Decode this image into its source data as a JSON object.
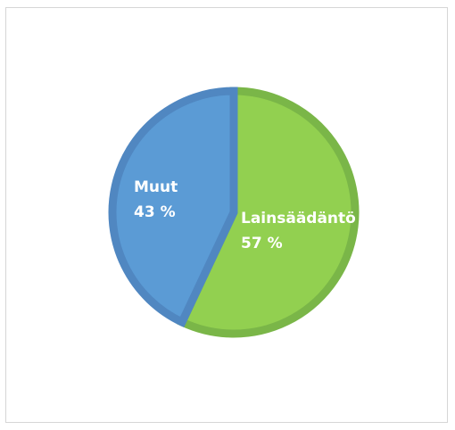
{
  "chart_data": {
    "type": "pie",
    "title": "",
    "categories": [
      "Lainsäädäntö",
      "Muut"
    ],
    "values": [
      57,
      43
    ],
    "value_labels": [
      "57 %",
      "43 %"
    ],
    "start_angle": "12 o'clock, clockwise",
    "colors": {
      "Lainsäädäntö": {
        "fill": "#92d050",
        "border": "#7ab648"
      },
      "Muut": {
        "fill": "#5b9bd5",
        "border": "#5087c1"
      }
    },
    "legend": "none",
    "labels_inside_slices": true
  }
}
